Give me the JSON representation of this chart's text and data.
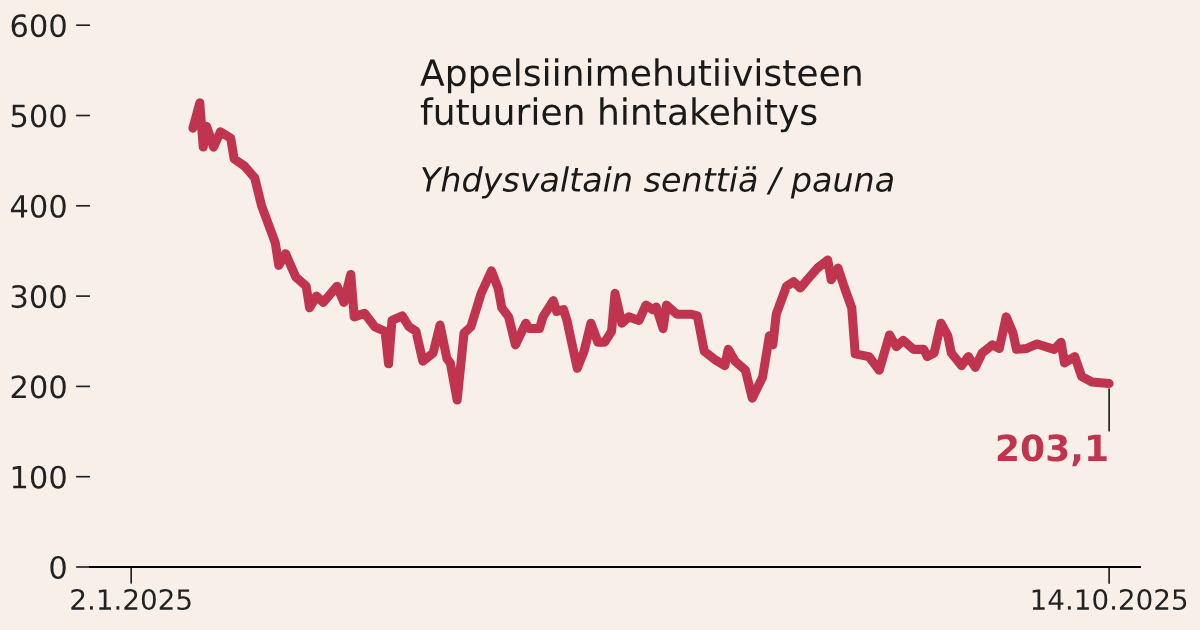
{
  "chart_data": {
    "type": "line",
    "title": "Appelsiinimehutiivisteen\nfutuurien hintakehitys",
    "subtitle": "Yhdysvaltain senttiä / pauna",
    "x": [
      "2025-01-20",
      "2025-01-22",
      "2025-01-23",
      "2025-01-24",
      "2025-01-26",
      "2025-01-28",
      "2025-01-31",
      "2025-02-01",
      "2025-02-04",
      "2025-02-07",
      "2025-02-09",
      "2025-02-13",
      "2025-02-14",
      "2025-02-16",
      "2025-02-19",
      "2025-02-22",
      "2025-02-23",
      "2025-02-25",
      "2025-02-27",
      "2025-03-03",
      "2025-03-05",
      "2025-03-07",
      "2025-03-08",
      "2025-03-11",
      "2025-03-14",
      "2025-03-17",
      "2025-03-18",
      "2025-03-19",
      "2025-03-22",
      "2025-03-24",
      "2025-03-26",
      "2025-03-28",
      "2025-03-31",
      "2025-04-02",
      "2025-04-04",
      "2025-04-05",
      "2025-04-07",
      "2025-04-09",
      "2025-04-11",
      "2025-04-14",
      "2025-04-17",
      "2025-04-19",
      "2025-04-20",
      "2025-04-22",
      "2025-04-24",
      "2025-04-27",
      "2025-04-28",
      "2025-05-01",
      "2025-05-02",
      "2025-05-05",
      "2025-05-06",
      "2025-05-08",
      "2025-05-09",
      "2025-05-12",
      "2025-05-14",
      "2025-05-16",
      "2025-05-18",
      "2025-05-20",
      "2025-05-22",
      "2025-05-23",
      "2025-05-25",
      "2025-05-27",
      "2025-05-30",
      "2025-06-01",
      "2025-06-03",
      "2025-06-04",
      "2025-06-06",
      "2025-06-07",
      "2025-06-10",
      "2025-06-14",
      "2025-06-16",
      "2025-06-18",
      "2025-06-21",
      "2025-06-24",
      "2025-06-25",
      "2025-06-27",
      "2025-06-30",
      "2025-07-02",
      "2025-07-05",
      "2025-07-07",
      "2025-07-08",
      "2025-07-09",
      "2025-07-12",
      "2025-07-14",
      "2025-07-16",
      "2025-07-18",
      "2025-07-21",
      "2025-07-24",
      "2025-07-25",
      "2025-07-27",
      "2025-07-29",
      "2025-07-31",
      "2025-08-01",
      "2025-08-05",
      "2025-08-08",
      "2025-08-11",
      "2025-08-13",
      "2025-08-15",
      "2025-08-18",
      "2025-08-21",
      "2025-08-22",
      "2025-08-24",
      "2025-08-26",
      "2025-08-28",
      "2025-08-29",
      "2025-09-01",
      "2025-09-03",
      "2025-09-05",
      "2025-09-07",
      "2025-09-10",
      "2025-09-12",
      "2025-09-14",
      "2025-09-16",
      "2025-09-17",
      "2025-09-20",
      "2025-09-23",
      "2025-09-28",
      "2025-09-30",
      "2025-10-01",
      "2025-10-04",
      "2025-10-06",
      "2025-10-09",
      "2025-10-14"
    ],
    "series": [
      {
        "color": "#c0344f",
        "values": [
          486,
          514,
          465,
          488,
          465,
          482,
          475,
          452,
          444,
          431,
          400,
          359,
          334,
          347,
          321,
          311,
          287,
          300,
          293,
          311,
          293,
          324,
          277,
          281,
          266,
          261,
          225,
          273,
          278,
          266,
          261,
          228,
          237,
          268,
          231,
          226,
          185,
          259,
          266,
          303,
          328,
          308,
          287,
          277,
          246,
          270,
          264,
          264,
          277,
          295,
          283,
          285,
          273,
          220,
          239,
          270,
          249,
          249,
          261,
          303,
          270,
          277,
          273,
          290,
          285,
          288,
          264,
          290,
          280,
          280,
          278,
          239,
          230,
          223,
          241,
          228,
          218,
          187,
          210,
          256,
          246,
          280,
          311,
          316,
          309,
          318,
          331,
          340,
          318,
          331,
          308,
          287,
          236,
          233,
          218,
          257,
          244,
          251,
          241,
          241,
          233,
          237,
          270,
          256,
          237,
          223,
          233,
          221,
          237,
          246,
          242,
          277,
          259,
          241,
          242,
          247,
          241,
          249,
          226,
          233,
          211,
          205,
          203.1
        ]
      }
    ],
    "annotations": [
      {
        "text": "203,1",
        "x": "2025-10-14",
        "y": 203.1
      }
    ],
    "xlim": [
      "2024-12-21",
      "2025-10-23"
    ],
    "xticks": [
      {
        "value": "2025-01-02",
        "label": "2.1.2025"
      },
      {
        "value": "2025-10-14",
        "label": "14.10.2025"
      }
    ],
    "ylim": [
      0,
      600
    ],
    "yticks": [
      0,
      100,
      200,
      300,
      400,
      500,
      600
    ],
    "grid": false,
    "legend": false,
    "marker": "none",
    "line_style": "solid"
  }
}
